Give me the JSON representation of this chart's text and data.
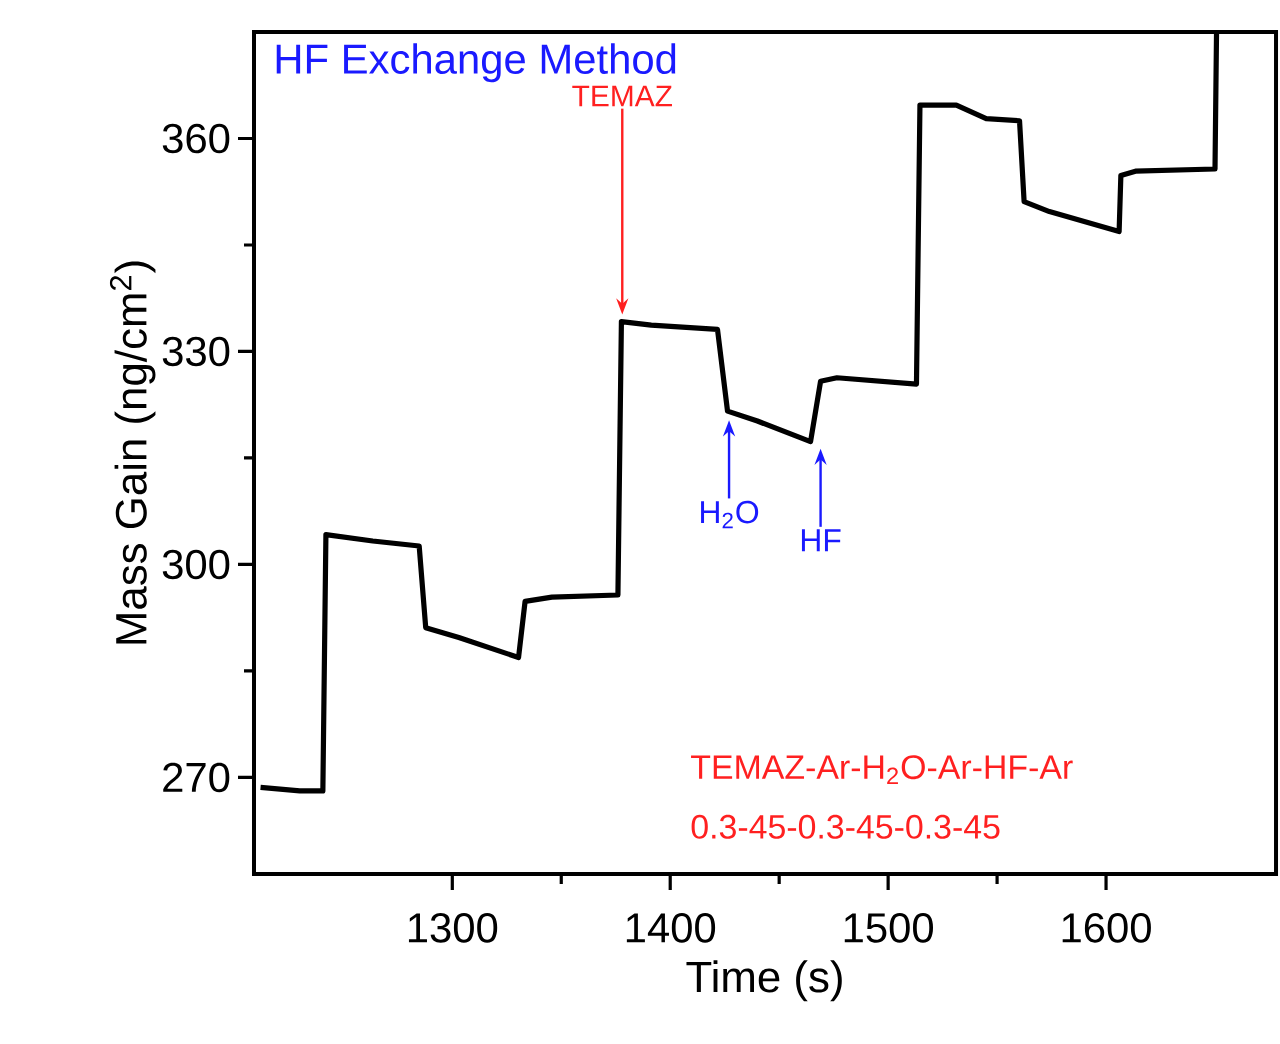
{
  "chart_data": {
    "type": "line",
    "title": "HF Exchange Method",
    "xlabel": "Time (s)",
    "ylabel": "Mass Gain (ng/cm$^{2}$)",
    "x": [
      1212,
      1230,
      1240.6,
      1242,
      1263.5,
      1284.8,
      1287.8,
      1303,
      1330.4,
      1333.4,
      1345.7,
      1376,
      1377.6,
      1391.3,
      1421.7,
      1426.3,
      1440,
      1464.4,
      1469,
      1476.5,
      1513,
      1514.6,
      1531.3,
      1545,
      1560.3,
      1562.4,
      1574,
      1606,
      1606.8,
      1613.5,
      1650,
      1650.7
    ],
    "values": [
      268.6,
      268.1,
      268.1,
      304.2,
      303.3,
      302.6,
      291.1,
      289.7,
      286.9,
      294.8,
      295.4,
      295.7,
      334.2,
      333.7,
      333.1,
      321.6,
      320.2,
      317.3,
      325.8,
      326.3,
      325.4,
      364.7,
      364.7,
      362.8,
      362.5,
      351.1,
      349.7,
      346.9,
      354.8,
      355.4,
      355.7,
      375
    ],
    "color": "#000000",
    "marker": "none",
    "line_style": "solid",
    "xlim": [
      1209,
      1678
    ],
    "ylim": [
      256.4,
      375
    ],
    "xticks": [
      1300,
      1400,
      1500,
      1600
    ],
    "yticks": [
      270,
      300,
      330,
      360
    ],
    "grid": false,
    "annotations": [
      {
        "text": "TEMAZ",
        "x": 1378,
        "y": 334.2
      },
      {
        "text": "H$_{2}$O",
        "x": 1427,
        "y": 321.3
      },
      {
        "text": "HF",
        "x": 1469,
        "y": 317.3
      },
      "TEMAZ-Ar-H$_{2}$O-Ar-HF-Ar",
      "0.3-45-0.3-45-0.3-45"
    ]
  }
}
